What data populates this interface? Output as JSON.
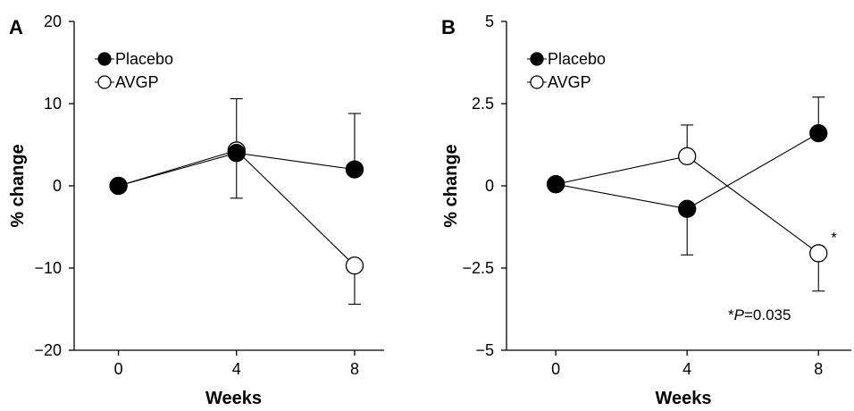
{
  "chart_data": [
    {
      "panel_label": "A",
      "type": "line",
      "xlabel": "Weeks",
      "ylabel": "% change",
      "x": [
        0,
        4,
        8
      ],
      "x_ticks": [
        "0",
        "4",
        "8"
      ],
      "xlim": [
        -1.5,
        9
      ],
      "ylim": [
        -20,
        20
      ],
      "y_ticks": [
        20,
        10,
        0,
        -10,
        -20
      ],
      "y_tick_labels": [
        "20",
        "10",
        "0",
        "−10",
        "−20"
      ],
      "legend_position": "top-left",
      "grid": false,
      "series": [
        {
          "name": "Placebo",
          "marker": "filled-circle",
          "values": [
            0,
            4.0,
            2.0
          ],
          "error_up": [
            null,
            6.6,
            6.8
          ],
          "error_down": [
            null,
            null,
            null
          ]
        },
        {
          "name": "AVGP",
          "marker": "open-circle",
          "values": [
            0,
            4.3,
            -9.7
          ],
          "error_up": [
            null,
            null,
            null
          ],
          "error_down": [
            null,
            5.8,
            4.7
          ]
        }
      ],
      "annotations": []
    },
    {
      "panel_label": "B",
      "type": "line",
      "xlabel": "Weeks",
      "ylabel": "% change",
      "x": [
        0,
        4,
        8
      ],
      "x_ticks": [
        "0",
        "4",
        "8"
      ],
      "xlim": [
        -1.5,
        9
      ],
      "ylim": [
        -5,
        5
      ],
      "y_ticks": [
        5,
        2.5,
        0,
        -2.5,
        -5
      ],
      "y_tick_labels": [
        "5",
        "2.5",
        "0",
        "−2.5",
        "−5"
      ],
      "legend_position": "top-left",
      "grid": false,
      "series": [
        {
          "name": "Placebo",
          "marker": "filled-circle",
          "values": [
            0.05,
            -0.7,
            1.6
          ],
          "error_up": [
            null,
            null,
            1.1
          ],
          "error_down": [
            null,
            1.4,
            null
          ]
        },
        {
          "name": "AVGP",
          "marker": "open-circle",
          "values": [
            0.05,
            0.9,
            -2.05
          ],
          "error_up": [
            null,
            0.95,
            null
          ],
          "error_down": [
            null,
            null,
            1.15
          ]
        }
      ],
      "annotations": [
        {
          "text": "*",
          "x": 8,
          "y": -2.05,
          "placement": "upper-right of point"
        },
        {
          "prefix": "*",
          "italic": "P",
          "suffix": "=0.035",
          "placement": "lower-right"
        }
      ]
    }
  ]
}
